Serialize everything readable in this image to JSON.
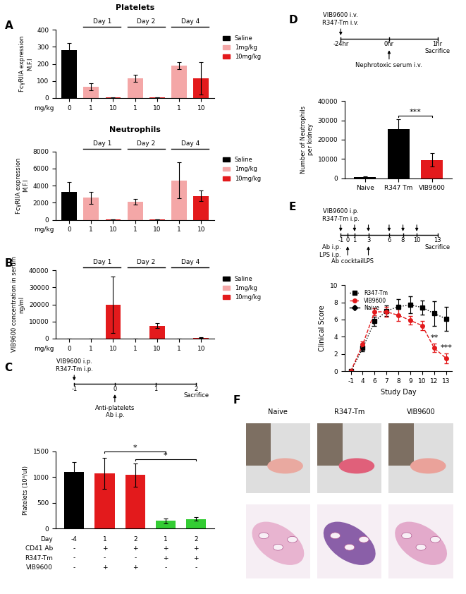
{
  "chart_data": [
    {
      "type": "bar",
      "annotations": [
        "A"
      ],
      "title": "Platelets",
      "y_label": "FcγRIIA expression\nM.F.I",
      "x_label": "mg/kg",
      "categories": [
        "0",
        "1",
        "10",
        "1",
        "10",
        "1",
        "10"
      ],
      "groups": [
        null,
        "Day 1",
        "Day 1",
        "Day 2",
        "Day 2",
        "Day 4",
        "Day 4"
      ],
      "series": [
        {
          "name": "Saline",
          "color": "#000000",
          "values": [
            280,
            null,
            null,
            null,
            null,
            null,
            null
          ],
          "errors": [
            40,
            null,
            null,
            null,
            null,
            null,
            null
          ]
        },
        {
          "name": "1mg/kg",
          "color": "#f4a7a7",
          "values": [
            null,
            65,
            null,
            115,
            null,
            190,
            null
          ],
          "errors": [
            null,
            20,
            null,
            22,
            null,
            22,
            null
          ]
        },
        {
          "name": "10mg/kg",
          "color": "#e31a1c",
          "values": [
            null,
            null,
            2,
            null,
            3,
            null,
            115
          ],
          "errors": [
            null,
            null,
            1,
            null,
            1,
            null,
            95
          ]
        }
      ],
      "ylim": [
        0,
        400
      ],
      "yticks": [
        0,
        100,
        200,
        300,
        400
      ],
      "legend": "right"
    },
    {
      "type": "bar",
      "title": "Neutrophils",
      "y_label": "FcγRIIA expression\nM.F.I",
      "x_label": "mg/kg",
      "categories": [
        "0",
        "1",
        "10",
        "1",
        "10",
        "1",
        "10"
      ],
      "groups": [
        null,
        "Day 1",
        "Day 1",
        "Day 2",
        "Day 2",
        "Day 4",
        "Day 4"
      ],
      "series": [
        {
          "name": "Saline",
          "color": "#000000",
          "values": [
            3300,
            null,
            null,
            null,
            null,
            null,
            null
          ],
          "errors": [
            1100,
            null,
            null,
            null,
            null,
            null,
            null
          ]
        },
        {
          "name": "1mg/kg",
          "color": "#f4a7a7",
          "values": [
            null,
            2600,
            null,
            2100,
            null,
            4600,
            null
          ],
          "errors": [
            null,
            700,
            null,
            350,
            null,
            2100,
            null
          ]
        },
        {
          "name": "10mg/kg",
          "color": "#e31a1c",
          "values": [
            null,
            null,
            30,
            null,
            50,
            null,
            2800
          ],
          "errors": [
            null,
            null,
            10,
            null,
            10,
            null,
            600
          ]
        }
      ],
      "ylim": [
        0,
        8000
      ],
      "yticks": [
        0,
        2000,
        4000,
        6000,
        8000
      ],
      "legend": "right"
    },
    {
      "type": "bar",
      "annotations": [
        "B"
      ],
      "y_label": "VIB9600 concentration in serum\nng/ml",
      "x_label": "mg/kg",
      "categories": [
        "0",
        "1",
        "10",
        "1",
        "10",
        "1",
        "10"
      ],
      "groups": [
        null,
        "Day 1",
        "Day 1",
        "Day 2",
        "Day 2",
        "Day 4",
        "Day 4"
      ],
      "series": [
        {
          "name": "Saline",
          "color": "#000000",
          "values": [
            0,
            null,
            null,
            null,
            null,
            null,
            null
          ],
          "errors": [
            0,
            null,
            null,
            null,
            null,
            null,
            null
          ]
        },
        {
          "name": "1mg/kg",
          "color": "#f4a7a7",
          "values": [
            null,
            0,
            null,
            0,
            null,
            0,
            null
          ],
          "errors": [
            null,
            0,
            null,
            0,
            null,
            0,
            null
          ]
        },
        {
          "name": "10mg/kg",
          "color": "#e31a1c",
          "values": [
            null,
            null,
            19800,
            null,
            7500,
            null,
            500
          ],
          "errors": [
            null,
            null,
            16500,
            null,
            1500,
            null,
            300
          ]
        }
      ],
      "ylim": [
        0,
        40000
      ],
      "yticks": [
        0,
        10000,
        20000,
        30000,
        40000
      ],
      "legend": "right"
    },
    {
      "type": "bar",
      "annotations": [
        "C"
      ],
      "timeline": {
        "ticks": [
          -1,
          0,
          1,
          2
        ],
        "arrows_above": [
          -1
        ],
        "texts_above": [
          {
            "at": -1,
            "text": "VIB9600 i.p.\nR347-Tm i.p."
          }
        ],
        "arrows_below": [
          0
        ],
        "texts_below": [
          {
            "at": 0,
            "text": "Anti-platelets\nAb i.p."
          },
          {
            "at": 2,
            "text": "Sacrifice"
          }
        ]
      },
      "y_label": "Platelets (10³/ul)",
      "categories": [
        null,
        null,
        null,
        null,
        null
      ],
      "values": [
        1100,
        1070,
        1040,
        150,
        190
      ],
      "errors": [
        200,
        300,
        230,
        50,
        40
      ],
      "colors": [
        "#000000",
        "#e31a1c",
        "#e31a1c",
        "#33cc33",
        "#33cc33"
      ],
      "ylim": [
        0,
        1500
      ],
      "yticks": [
        0,
        500,
        1000,
        1500
      ],
      "significance": [
        {
          "from": 1,
          "to": 3,
          "text": "*"
        },
        {
          "from": 2,
          "to": 4,
          "text": "*"
        }
      ],
      "table": {
        "rows": [
          {
            "label": "Day",
            "cells": [
              "-4",
              "1",
              "2",
              "1",
              "2"
            ]
          },
          {
            "label": "CD41 Ab",
            "cells": [
              "-",
              "+",
              "+",
              "+",
              "+"
            ]
          },
          {
            "label": "R347-Tm",
            "cells": [
              "-",
              "-",
              "-",
              "+",
              "+"
            ]
          },
          {
            "label": "VIB9600",
            "cells": [
              "-",
              "+",
              "+",
              "-",
              "-"
            ]
          }
        ]
      }
    },
    {
      "type": "bar",
      "annotations": [
        "D"
      ],
      "timeline": {
        "ticks": [
          "-24hr",
          "0hr",
          "1hr"
        ],
        "arrows_above": [
          "-24hr"
        ],
        "texts_above": [
          {
            "at": "-24hr",
            "text": "VIB9600 i.v.\nR347-Tm i.v."
          }
        ],
        "arrows_below": [
          "0hr"
        ],
        "texts_below": [
          {
            "at": "0hr",
            "text": "Nephrotoxic serum i.v."
          },
          {
            "at": "1hr",
            "text": "Sacrifice"
          }
        ]
      },
      "y_label": "Number of Neutrophils\nper kidney",
      "categories": [
        "Naive",
        "R347 Tm",
        "VIB9600"
      ],
      "values": [
        500,
        25500,
        9500
      ],
      "errors": [
        300,
        5000,
        3500
      ],
      "colors": [
        "#000000",
        "#000000",
        "#e31a1c"
      ],
      "ylim": [
        0,
        40000
      ],
      "yticks": [
        0,
        10000,
        20000,
        30000,
        40000
      ],
      "significance": [
        {
          "from": 1,
          "to": 2,
          "text": "***"
        }
      ]
    },
    {
      "type": "line",
      "annotations": [
        "E"
      ],
      "timeline": {
        "ticks": [
          -1,
          0,
          1,
          3,
          6,
          8,
          10,
          13
        ],
        "arrows_above": [
          -1,
          1,
          3,
          6,
          8,
          10
        ],
        "texts_above": [
          {
            "at": -1,
            "text": "VIB9600 i.p.\nR347-Tm i.p."
          }
        ],
        "arrows_below": [
          0,
          3
        ],
        "texts_below": [
          {
            "at": -1,
            "text": "Ab i.p.\nLPS i.p."
          },
          {
            "at": 0,
            "text": "Ab cocktail"
          },
          {
            "at": 3,
            "text": "LPS"
          },
          {
            "at": 13,
            "text": "Sacrifice"
          }
        ]
      },
      "x_label": "Study Day",
      "y_label": "Clinical Score",
      "categories": [
        "-1",
        "4",
        "6",
        "7",
        "8",
        "9",
        "10",
        "12",
        "13"
      ],
      "series": [
        {
          "name": "R347-Tm",
          "color": "#000000",
          "marker": "square",
          "line_style": "dotted",
          "values": [
            0,
            2.7,
            5.8,
            7.0,
            7.5,
            7.7,
            7.4,
            6.7,
            6.1
          ],
          "errors": [
            0,
            0.4,
            0.5,
            0.6,
            0.9,
            1.0,
            0.8,
            1.4,
            1.4
          ]
        },
        {
          "name": "VIB9600",
          "color": "#e31a1c",
          "marker": "circle",
          "line_style": "dashed",
          "values": [
            0,
            3.1,
            6.9,
            6.9,
            6.5,
            5.9,
            5.3,
            2.7,
            1.5
          ],
          "errors": [
            0,
            0.4,
            0.4,
            0.6,
            0.7,
            0.5,
            0.5,
            0.5,
            0.6
          ]
        },
        {
          "name": "Naive",
          "color": "#000000",
          "marker": "diamond",
          "line_style": "solid",
          "values": [
            null,
            null,
            null,
            null,
            null,
            null,
            null,
            null,
            null
          ],
          "errors": [
            null,
            null,
            null,
            null,
            null,
            null,
            null,
            null,
            null
          ]
        }
      ],
      "ylim": [
        0,
        10
      ],
      "yticks": [
        0,
        2,
        4,
        6,
        8,
        10
      ],
      "legend": "upper left",
      "significance": [
        {
          "at": "12",
          "series": "VIB9600",
          "text": "**"
        },
        {
          "at": "13",
          "series": "VIB9600",
          "text": "***"
        }
      ]
    },
    {
      "type": "image",
      "annotations": [
        "F"
      ],
      "categories": [
        "Naive",
        "R347-Tm",
        "VIB9600"
      ]
    }
  ]
}
